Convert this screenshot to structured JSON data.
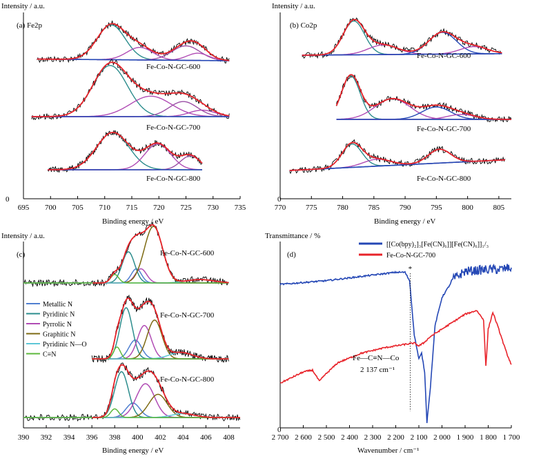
{
  "chart_data": [
    {
      "id": "a",
      "type": "line",
      "panel_label": "(a) Fe2p",
      "ylabel": "Intensity / a.u.",
      "xlabel": "Binding energy / eV",
      "xlim": [
        695,
        735
      ],
      "xticks": [
        695,
        700,
        705,
        710,
        715,
        720,
        725,
        730,
        735
      ],
      "ytick_zero": "0",
      "colors": {
        "raw": "#000000",
        "fit": "#e8232a",
        "peak1": "#2b8c8c",
        "peak2": "#b04bb4",
        "peak3": "#9a4ea5",
        "baseline": "#2447b5"
      },
      "samples": [
        {
          "name": "Fe-Co-N-GC-600",
          "x_range": [
            697.5,
            733
          ],
          "baseline": [
            0.12,
            0.0
          ],
          "peaks": [
            {
              "center": 711.2,
              "height": 0.72,
              "width": 2.6
            },
            {
              "center": 716.5,
              "height": 0.26,
              "width": 2.4
            },
            {
              "center": 725.0,
              "height": 0.3,
              "width": 2.6
            },
            {
              "center": 727.2,
              "height": 0.15,
              "width": 2.0
            }
          ]
        },
        {
          "name": "Fe-Co-N-GC-700",
          "x_range": [
            696.5,
            733
          ],
          "baseline": [
            0.05,
            0.05
          ],
          "peaks": [
            {
              "center": 711.0,
              "height": 0.95,
              "width": 3.2
            },
            {
              "center": 718.5,
              "height": 0.38,
              "width": 3.8
            },
            {
              "center": 724.5,
              "height": 0.28,
              "width": 2.6
            },
            {
              "center": 728.0,
              "height": 0.12,
              "width": 2.4
            }
          ]
        },
        {
          "name": "Fe-Co-N-GC-800",
          "x_range": [
            699.5,
            728
          ],
          "baseline": [
            0.0,
            0.0
          ],
          "peaks": [
            {
              "center": 711.5,
              "height": 0.75,
              "width": 3.0
            },
            {
              "center": 719.8,
              "height": 0.52,
              "width": 2.4
            },
            {
              "center": 725.8,
              "height": 0.28,
              "width": 1.8
            }
          ]
        }
      ]
    },
    {
      "id": "b",
      "type": "line",
      "panel_label": "(b) Co2p",
      "ylabel": "Intensity / a.u.",
      "xlabel": "Binding energy / eV",
      "xlim": [
        770,
        807
      ],
      "xticks": [
        770,
        775,
        780,
        785,
        790,
        795,
        800,
        805
      ],
      "ytick_zero": "0",
      "colors": {
        "raw": "#000000",
        "fit": "#e8232a",
        "peak1": "#2b8c8c",
        "peak2": "#b04bb4",
        "peak3": "#2447b5",
        "baseline": "#2447b5"
      },
      "samples": [
        {
          "name": "Fe-Co-N-GC-600",
          "x_range": [
            773.5,
            805.5
          ],
          "baseline": [
            0.0,
            0.08
          ],
          "peaks": [
            {
              "center": 781.8,
              "height": 0.7,
              "width": 1.7
            },
            {
              "center": 786.5,
              "height": 0.2,
              "width": 2.4
            },
            {
              "center": 796.0,
              "height": 0.45,
              "width": 2.2
            },
            {
              "center": 801.0,
              "height": 0.15,
              "width": 2.2
            }
          ]
        },
        {
          "name": "Fe-Co-N-GC-700",
          "x_range": [
            779.0,
            807.0
          ],
          "baseline": [
            0.0,
            0.0
          ],
          "peaks": [
            {
              "center": 781.3,
              "height": 1.05,
              "width": 1.5
            },
            {
              "center": 788.0,
              "height": 0.5,
              "width": 2.8
            },
            {
              "center": 795.0,
              "height": 0.3,
              "width": 2.3
            },
            {
              "center": 799.0,
              "height": 0.12,
              "width": 2.2
            }
          ]
        },
        {
          "name": "Fe-Co-N-GC-800",
          "x_range": [
            771.5,
            806.0
          ],
          "baseline": [
            0.0,
            0.55
          ],
          "peaks": [
            {
              "center": 781.5,
              "height": 0.68,
              "width": 1.6
            },
            {
              "center": 785.5,
              "height": 0.2,
              "width": 2.2
            },
            {
              "center": 795.5,
              "height": 0.4,
              "width": 1.8
            }
          ]
        }
      ]
    },
    {
      "id": "c",
      "type": "line",
      "panel_label": "(c)",
      "ylabel": "Intensity / a.u.",
      "xlabel": "Binding energy / eV",
      "xlim": [
        390,
        409
      ],
      "xticks": [
        390,
        392,
        394,
        396,
        398,
        400,
        402,
        404,
        406,
        408
      ],
      "legend_entries": [
        {
          "label": "Metallic N",
          "color": "#4f7fd0"
        },
        {
          "label": "Pyridinic N",
          "color": "#2b8c8c"
        },
        {
          "label": "Pyrrolic N",
          "color": "#b04bb4"
        },
        {
          "label": "Graphitic N",
          "color": "#7d6a12"
        },
        {
          "label": "Pyridinic N—O",
          "color": "#5cc6d6"
        },
        {
          "label": "C≡N",
          "color": "#5cb83b"
        }
      ],
      "colors": {
        "raw": "#000000",
        "fit": "#e8232a"
      },
      "samples": [
        {
          "name": "Fe-Co-N-GC-600",
          "x_range": [
            390,
            408
          ],
          "components": [
            {
              "type": "Metallic N",
              "center": 399.9,
              "height": 0.25,
              "width": 0.45
            },
            {
              "type": "Pyridinic N",
              "center": 399.2,
              "height": 0.55,
              "width": 0.55
            },
            {
              "type": "Pyrrolic N",
              "center": 400.3,
              "height": 0.25,
              "width": 0.5
            },
            {
              "type": "Graphitic N",
              "center": 401.4,
              "height": 1.0,
              "width": 0.8
            },
            {
              "type": "Pyridinic N—O",
              "center": 405.5,
              "height": 0.06,
              "width": 1.2
            },
            {
              "type": "C≡N",
              "center": 398.0,
              "height": 0.15,
              "width": 0.35
            }
          ]
        },
        {
          "name": "Fe-Co-N-GC-700",
          "x_range": [
            396,
            408
          ],
          "components": [
            {
              "type": "Metallic N",
              "center": 399.8,
              "height": 0.35,
              "width": 0.55
            },
            {
              "type": "Pyridinic N",
              "center": 399.0,
              "height": 0.95,
              "width": 0.55
            },
            {
              "type": "Pyrrolic N",
              "center": 400.6,
              "height": 0.62,
              "width": 0.6
            },
            {
              "type": "Graphitic N",
              "center": 401.5,
              "height": 0.72,
              "width": 0.65
            },
            {
              "type": "Pyridinic N—O",
              "center": 403.8,
              "height": 0.12,
              "width": 1.0
            },
            {
              "type": "C≡N",
              "center": 398.2,
              "height": 0.22,
              "width": 0.3
            }
          ]
        },
        {
          "name": "Fe-Co-N-GC-800",
          "x_range": [
            390,
            409
          ],
          "components": [
            {
              "type": "Metallic N",
              "center": 399.6,
              "height": 0.3,
              "width": 0.6
            },
            {
              "type": "Pyridinic N",
              "center": 398.6,
              "height": 0.95,
              "width": 0.6
            },
            {
              "type": "Pyrrolic N",
              "center": 400.7,
              "height": 0.7,
              "width": 0.8
            },
            {
              "type": "Graphitic N",
              "center": 401.8,
              "height": 0.48,
              "width": 0.8
            },
            {
              "type": "Pyridinic N—O",
              "center": 404.0,
              "height": 0.08,
              "width": 1.0
            },
            {
              "type": "C≡N",
              "center": 398.0,
              "height": 0.18,
              "width": 0.35
            }
          ]
        }
      ]
    },
    {
      "id": "d",
      "type": "line",
      "panel_label": "(d)",
      "ylabel": "Transmittance / %",
      "xlabel": "Wavenumber / cm⁻¹",
      "xlim": [
        2700,
        1700
      ],
      "xticks": [
        2700,
        2600,
        2500,
        2400,
        2300,
        2200,
        2100,
        2000,
        1900,
        1800,
        1700
      ],
      "xtick_labels": [
        "2 700",
        "2 600",
        "2 500",
        "2 400",
        "2 300",
        "2 200",
        "2 100",
        "2 000",
        "1 900",
        "1 800",
        "1 700"
      ],
      "ylim": [
        0,
        1
      ],
      "ytick_zero": "0",
      "series": [
        {
          "name": "[[Co(bpy)₂]₃[Fe(CN)₆]][Fe(CN)₆]]₁/₃",
          "color": "#2447b5",
          "points": [
            [
              2700,
              0.77
            ],
            [
              2500,
              0.79
            ],
            [
              2300,
              0.82
            ],
            [
              2200,
              0.835
            ],
            [
              2160,
              0.835
            ],
            [
              2140,
              0.79
            ],
            [
              2120,
              0.5
            ],
            [
              2100,
              0.37
            ],
            [
              2088,
              0.4
            ],
            [
              2075,
              0.3
            ],
            [
              2065,
              0.03
            ],
            [
              2050,
              0.22
            ],
            [
              2030,
              0.55
            ],
            [
              2000,
              0.7
            ],
            [
              1950,
              0.8
            ],
            [
              1900,
              0.84
            ],
            [
              1850,
              0.845
            ],
            [
              1800,
              0.85
            ],
            [
              1750,
              0.85
            ],
            [
              1700,
              0.86
            ]
          ]
        },
        {
          "name": "Fe-Co-N-GC-700",
          "color": "#e8232a",
          "points": [
            [
              2700,
              0.24
            ],
            [
              2650,
              0.27
            ],
            [
              2600,
              0.3
            ],
            [
              2560,
              0.31
            ],
            [
              2530,
              0.25
            ],
            [
              2510,
              0.28
            ],
            [
              2450,
              0.35
            ],
            [
              2350,
              0.4
            ],
            [
              2250,
              0.43
            ],
            [
              2150,
              0.45
            ],
            [
              2120,
              0.455
            ],
            [
              2100,
              0.44
            ],
            [
              2080,
              0.455
            ],
            [
              2050,
              0.49
            ],
            [
              2000,
              0.53
            ],
            [
              1950,
              0.57
            ],
            [
              1900,
              0.61
            ],
            [
              1850,
              0.63
            ],
            [
              1820,
              0.58
            ],
            [
              1810,
              0.33
            ],
            [
              1800,
              0.53
            ],
            [
              1780,
              0.62
            ],
            [
              1760,
              0.55
            ],
            [
              1720,
              0.4
            ],
            [
              1700,
              0.34
            ]
          ]
        }
      ],
      "annotation": {
        "line1": "Fe—C≡N—Co",
        "line2": "2 137 cm⁻¹",
        "marker_x": 2137
      }
    }
  ]
}
